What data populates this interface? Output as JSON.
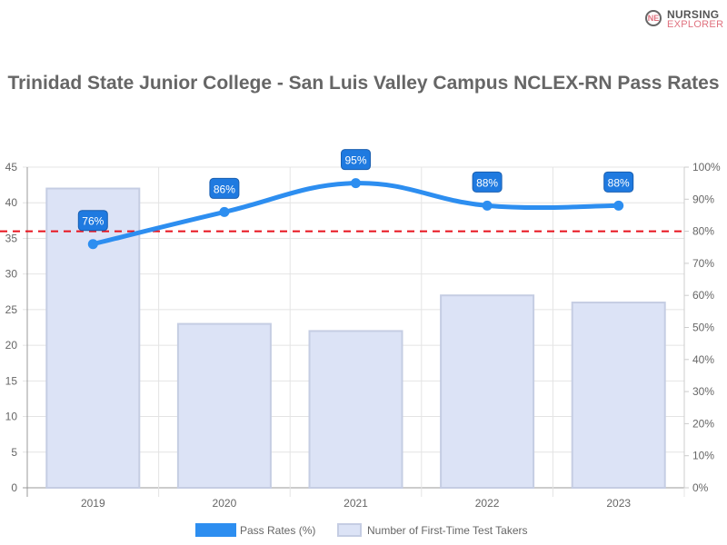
{
  "logo": {
    "line1": "NURSING",
    "line2": "EXPLORER",
    "mark": "NE"
  },
  "chart_data": {
    "type": "bar+line",
    "title": "Trinidad State Junior College - San Luis Valley Campus NCLEX-RN Pass Rates",
    "categories": [
      "2019",
      "2020",
      "2021",
      "2022",
      "2023"
    ],
    "series": [
      {
        "name": "Pass Rates (%)",
        "type": "line",
        "axis": "right",
        "values": [
          76,
          86,
          95,
          88,
          88
        ],
        "labels": [
          "76%",
          "86%",
          "95%",
          "88%",
          "88%"
        ],
        "color": "#2d8ef0"
      },
      {
        "name": "Number of First-Time Test Takers",
        "type": "bar",
        "axis": "left",
        "values": [
          42,
          23,
          22,
          27,
          26
        ],
        "color": "#dce3f6"
      }
    ],
    "reference_line": {
      "value": 80,
      "axis": "right",
      "style": "dashed",
      "color": "#e8121c"
    },
    "left_axis": {
      "ylim": [
        0,
        45
      ],
      "ticks": [
        "0",
        "5",
        "10",
        "15",
        "20",
        "25",
        "30",
        "35",
        "40",
        "45"
      ]
    },
    "right_axis": {
      "ylim": [
        0,
        100
      ],
      "ticks": [
        "0%",
        "10%",
        "20%",
        "30%",
        "40%",
        "50%",
        "60%",
        "70%",
        "80%",
        "90%",
        "100%"
      ]
    },
    "grid": true,
    "legend_position": "bottom"
  }
}
